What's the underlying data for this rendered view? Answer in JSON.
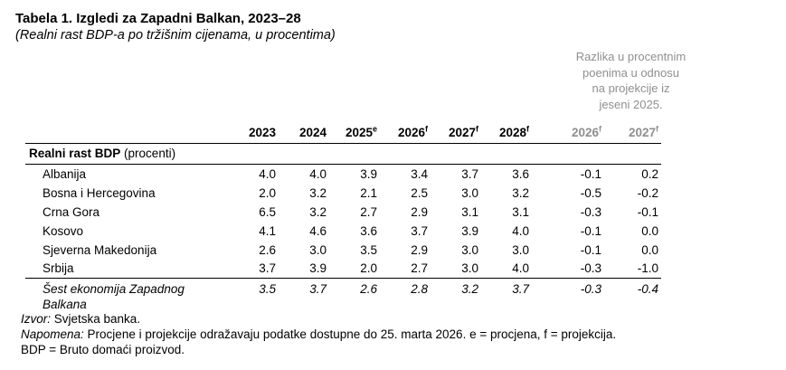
{
  "title": "Tabela 1. Izgledi za Zapadni Balkan, 2023–28",
  "subtitle": "(Realni rast BDP-a po tržišnim cijenama, u procentima)",
  "diff_note": {
    "lines": [
      "Razlika u procentnim",
      "poenima u odnosu",
      "na projekcije iz",
      "jeseni 2025."
    ]
  },
  "table": {
    "section_header": {
      "bold": "Realni rast BDP",
      "rest": " (procenti)"
    },
    "columns": [
      {
        "label": "2023",
        "sup": "",
        "muted": false
      },
      {
        "label": "2024",
        "sup": "",
        "muted": false
      },
      {
        "label": "2025",
        "sup": "e",
        "muted": false
      },
      {
        "label": "2026",
        "sup": "f",
        "muted": false
      },
      {
        "label": "2027",
        "sup": "f",
        "muted": false
      },
      {
        "label": "2028",
        "sup": "f",
        "muted": false
      },
      {
        "label": "2026",
        "sup": "f",
        "muted": true
      },
      {
        "label": "2027",
        "sup": "f",
        "muted": true
      }
    ],
    "rows": [
      {
        "name": "Albanija",
        "values": [
          "4.0",
          "4.0",
          "3.9",
          "3.4",
          "3.7",
          "3.6",
          "-0.1",
          "0.2"
        ]
      },
      {
        "name": "Bosna i Hercegovina",
        "values": [
          "2.0",
          "3.2",
          "2.1",
          "2.5",
          "3.0",
          "3.2",
          "-0.5",
          "-0.2"
        ]
      },
      {
        "name": "Crna Gora",
        "values": [
          "6.5",
          "3.2",
          "2.7",
          "2.9",
          "3.1",
          "3.1",
          "-0.3",
          "-0.1"
        ]
      },
      {
        "name": "Kosovo",
        "values": [
          "4.1",
          "4.6",
          "3.6",
          "3.7",
          "3.9",
          "4.0",
          "-0.1",
          "0.0"
        ]
      },
      {
        "name": "Sjeverna Makedonija",
        "values": [
          "2.6",
          "3.0",
          "3.5",
          "2.9",
          "3.0",
          "3.0",
          "-0.1",
          "0.0"
        ]
      },
      {
        "name": "Srbija",
        "values": [
          "3.7",
          "3.9",
          "2.0",
          "2.7",
          "3.0",
          "4.0",
          "-0.3",
          "-1.0"
        ]
      }
    ],
    "summary_row": {
      "name": "Šest ekonomija Zapadnog Balkana",
      "values": [
        "3.5",
        "3.7",
        "2.6",
        "2.8",
        "3.2",
        "3.7",
        "-0.3",
        "-0.4"
      ]
    }
  },
  "footnotes": [
    {
      "lead": "Izvor:",
      "text": " Svjetska banka."
    },
    {
      "lead": "Napomena:",
      "text": " Procjene i projekcije odražavaju podatke dostupne do 25. marta 2026. e = procjena, f = projekcija."
    },
    {
      "lead": "",
      "text": "BDP = Bruto domaći proizvod."
    }
  ],
  "colors": {
    "text": "#000000",
    "muted": "#8f8f8f",
    "rule": "#000000",
    "background": "#ffffff"
  }
}
